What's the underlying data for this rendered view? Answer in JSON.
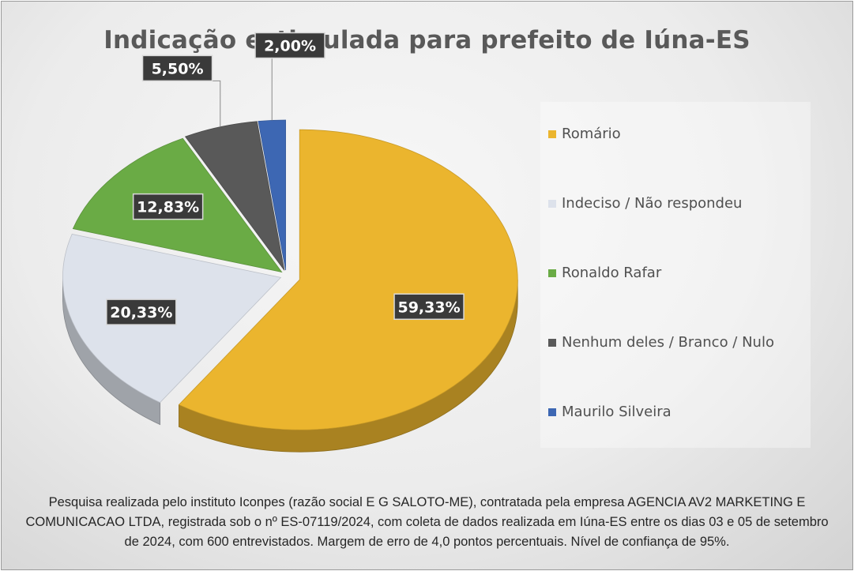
{
  "footnote": "Pesquisa realizada pelo instituto Iconpes (razão social E G SALOTO-ME), contratada pela empresa AGENCIA AV2 MARKETING E COMUNICACAO LTDA, registrada sob o nº ES-07119/2024, com coleta de dados realizada em Iúna-ES entre os dias 03 e 05 de setembro de 2024, com 600 entrevistados. Margem de erro de 4,0 pontos percentuais. Nível de confiança de 95%.",
  "chart_data": {
    "type": "pie",
    "title": "Indicação estimulada para prefeito de Iúna-ES",
    "style": "3d-exploded",
    "legend_position": "right",
    "slices": [
      {
        "label": "Romário",
        "value": 59.33,
        "display": "59,33%",
        "color": "#EBB52E"
      },
      {
        "label": "Indeciso / Não respondeu",
        "value": 20.33,
        "display": "20,33%",
        "color": "#DDE2EB"
      },
      {
        "label": "Ronaldo Rafar",
        "value": 12.83,
        "display": "12,83%",
        "color": "#6AAB45"
      },
      {
        "label": "Nenhum deles / Branco / Nulo",
        "value": 5.5,
        "display": "5,50%",
        "color": "#595959"
      },
      {
        "label": "Maurilo Silveira",
        "value": 2.0,
        "display": "2,00%",
        "color": "#3D67B3"
      }
    ]
  }
}
